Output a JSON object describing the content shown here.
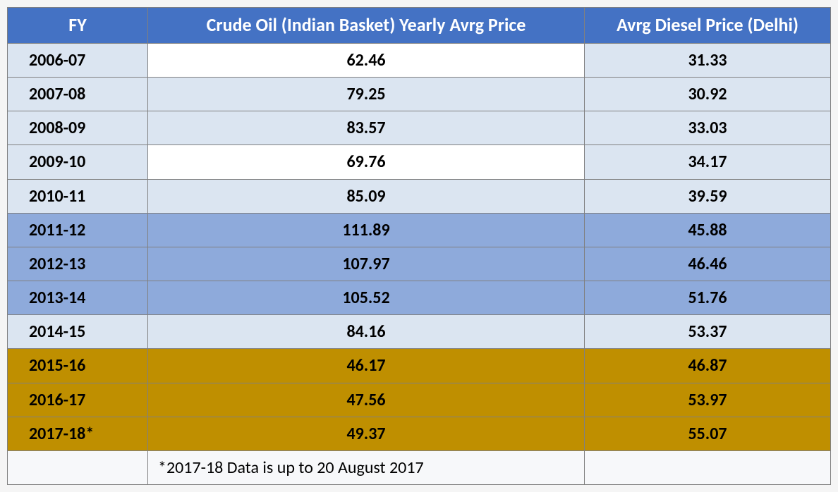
{
  "table": {
    "headers": {
      "fy": "FY",
      "crude": "Crude Oil (Indian Basket) Yearly Avrg Price",
      "diesel": "Avrg Diesel Price (Delhi)"
    },
    "row_highlight_colors": {
      "white": "#ffffff",
      "light_blue": "#dbe5f1",
      "mid_blue": "#8eaadb",
      "gold": "#bf8f00"
    },
    "rows": [
      {
        "fy": "2006-07",
        "crude": "62.46",
        "diesel": "31.33",
        "bg": "white"
      },
      {
        "fy": "2007-08",
        "crude": "79.25",
        "diesel": "30.92",
        "bg": "light_blue"
      },
      {
        "fy": "2008-09",
        "crude": "83.57",
        "diesel": "33.03",
        "bg": "light_blue"
      },
      {
        "fy": "2009-10",
        "crude": "69.76",
        "diesel": "34.17",
        "bg": "white"
      },
      {
        "fy": "2010-11",
        "crude": "85.09",
        "diesel": "39.59",
        "bg": "light_blue"
      },
      {
        "fy": "2011-12",
        "crude": "111.89",
        "diesel": "45.88",
        "bg": "mid_blue"
      },
      {
        "fy": "2012-13",
        "crude": "107.97",
        "diesel": "46.46",
        "bg": "mid_blue"
      },
      {
        "fy": "2013-14",
        "crude": "105.52",
        "diesel": "51.76",
        "bg": "mid_blue"
      },
      {
        "fy": "2014-15",
        "crude": "84.16",
        "diesel": "53.37",
        "bg": "light_blue"
      },
      {
        "fy": "2015-16",
        "crude": "46.17",
        "diesel": "46.87",
        "bg": "gold"
      },
      {
        "fy": "2016-17",
        "crude": "47.56",
        "diesel": "53.97",
        "bg": "gold"
      },
      {
        "fy": "2017-18*",
        "crude": "49.37",
        "diesel": "55.07",
        "bg": "gold"
      }
    ],
    "footnote": "*2017-18 Data is up to 20 August 2017"
  }
}
